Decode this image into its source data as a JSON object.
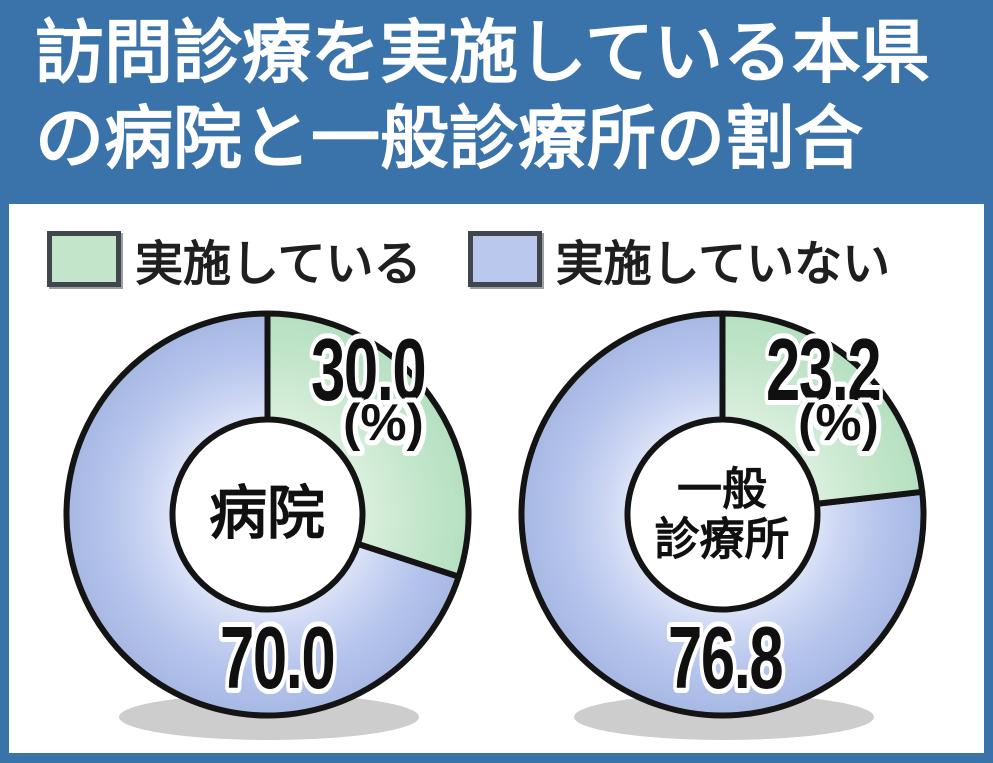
{
  "title": {
    "line1": "訪問診療を実施している本県",
    "line2": "の病院と一般診療所の割合"
  },
  "legend": [
    {
      "label": "実施している",
      "color": "#c3e6cb"
    },
    {
      "label": "実施していない",
      "color": "#b9c8ec"
    }
  ],
  "charts": [
    {
      "center_lines": [
        "病院"
      ],
      "value_implementing": "30.0",
      "unit": "(%)",
      "value_not_implementing": "70.0"
    },
    {
      "center_lines": [
        "一般",
        "診療所"
      ],
      "value_implementing": "23.2",
      "unit": "(%)",
      "value_not_implementing": "76.8"
    }
  ],
  "chart_data": [
    {
      "type": "pie",
      "subtype": "donut",
      "title": "病院",
      "labels": [
        "実施している",
        "実施していない"
      ],
      "values": [
        30.0,
        70.0
      ],
      "unit": "%",
      "start_angle_deg": 0,
      "direction": "clockwise",
      "colors": [
        "#c3e6cb",
        "#b9c8ec"
      ]
    },
    {
      "type": "pie",
      "subtype": "donut",
      "title": "一般診療所",
      "labels": [
        "実施している",
        "実施していない"
      ],
      "values": [
        23.2,
        76.8
      ],
      "unit": "%",
      "start_angle_deg": 0,
      "direction": "clockwise",
      "colors": [
        "#c3e6cb",
        "#b9c8ec"
      ]
    }
  ],
  "colors": {
    "frame_blue": "#3a72aa",
    "implementing_green": "#c3e6cb",
    "not_implementing_blue": "#b9c8ec",
    "outline_black": "#141414",
    "shadow_gray": "#cdcdcd",
    "title_text": "#ffffff"
  }
}
